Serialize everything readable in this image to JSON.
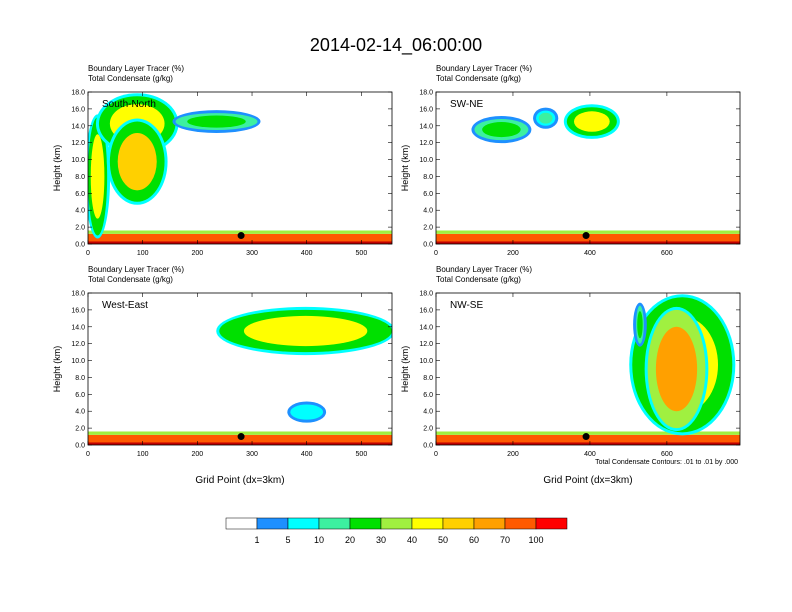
{
  "main_title": "2014-02-14_06:00:00",
  "panel_subtitle_line1": "Boundary Layer Tracer    (%)",
  "panel_subtitle_line2": "Total Condensate   (g/kg)",
  "ylabel": "Height (km)",
  "xlabel": "Grid Point (dx=3km)",
  "contour_info": "Total Condensate Contours: .01 to .01 by .000",
  "colorbar": {
    "colors": [
      "#ffffff",
      "#1e90ff",
      "#00ffff",
      "#3cf0a0",
      "#00e000",
      "#a0f040",
      "#ffff00",
      "#ffd000",
      "#ffa000",
      "#ff5a00",
      "#ff0000"
    ],
    "labels": [
      "1",
      "5",
      "10",
      "20",
      "30",
      "40",
      "50",
      "60",
      "70",
      "100"
    ]
  },
  "chart_data": [
    {
      "type": "heatmap",
      "panel_label": "South-North",
      "xlim": [
        0,
        556
      ],
      "ylim": [
        0,
        18
      ],
      "xticks": [
        0,
        100,
        200,
        300,
        400,
        500
      ],
      "yticks": [
        "0.0",
        "2.0",
        "4.0",
        "6.0",
        "8.0",
        "10.0",
        "12.0",
        "14.0",
        "16.0",
        "18.0"
      ],
      "marker": {
        "x": 280,
        "y": 1.0
      },
      "contour_label": ".01",
      "tracer_regions": [
        {
          "x": [
            0,
            556
          ],
          "y": [
            0.0,
            1.2
          ],
          "value": 80
        },
        {
          "x": [
            0,
            556
          ],
          "y": [
            1.2,
            1.6
          ],
          "value": 30
        },
        {
          "x": [
            0,
            35
          ],
          "y": [
            1.0,
            15.0
          ],
          "value": 40
        },
        {
          "x": [
            20,
            160
          ],
          "y": [
            11.0,
            17.5
          ],
          "value": 40
        },
        {
          "x": [
            40,
            140
          ],
          "y": [
            5.0,
            14.5
          ],
          "value": 55
        },
        {
          "x": [
            160,
            310
          ],
          "y": [
            13.5,
            15.5
          ],
          "value": 25
        }
      ]
    },
    {
      "type": "heatmap",
      "panel_label": "SW-NE",
      "xlim": [
        0,
        790
      ],
      "ylim": [
        0,
        18
      ],
      "xticks": [
        0,
        200,
        400,
        600
      ],
      "yticks": [
        "0.0",
        "2.0",
        "4.0",
        "6.0",
        "8.0",
        "10.0",
        "12.0",
        "14.0",
        "16.0",
        "18.0"
      ],
      "marker": {
        "x": 390,
        "y": 1.0
      },
      "contour_label": ".01",
      "tracer_regions": [
        {
          "x": [
            0,
            790
          ],
          "y": [
            0.0,
            1.2
          ],
          "value": 80
        },
        {
          "x": [
            0,
            790
          ],
          "y": [
            1.2,
            1.6
          ],
          "value": 30
        },
        {
          "x": [
            100,
            240
          ],
          "y": [
            12.3,
            14.8
          ],
          "value": 25
        },
        {
          "x": [
            260,
            310
          ],
          "y": [
            14.0,
            15.8
          ],
          "value": 10
        },
        {
          "x": [
            340,
            470
          ],
          "y": [
            12.8,
            16.2
          ],
          "value": 40
        }
      ]
    },
    {
      "type": "heatmap",
      "panel_label": "West-East",
      "xlim": [
        0,
        556
      ],
      "ylim": [
        0,
        18
      ],
      "xticks": [
        0,
        100,
        200,
        300,
        400,
        500
      ],
      "yticks": [
        "0.0",
        "2.0",
        "4.0",
        "6.0",
        "8.0",
        "10.0",
        "12.0",
        "14.0",
        "16.0",
        "18.0"
      ],
      "marker": {
        "x": 280,
        "y": 1.0
      },
      "contour_label": ".01",
      "tracer_regions": [
        {
          "x": [
            0,
            556
          ],
          "y": [
            0.0,
            1.2
          ],
          "value": 80
        },
        {
          "x": [
            0,
            556
          ],
          "y": [
            1.2,
            1.6
          ],
          "value": 30
        },
        {
          "x": [
            240,
            556
          ],
          "y": [
            11.0,
            16.0
          ],
          "value": 40
        },
        {
          "x": [
            370,
            430
          ],
          "y": [
            3.0,
            4.8
          ],
          "value": 5
        }
      ]
    },
    {
      "type": "heatmap",
      "panel_label": "NW-SE",
      "xlim": [
        0,
        790
      ],
      "ylim": [
        0,
        18
      ],
      "xticks": [
        0,
        200,
        400,
        600
      ],
      "yticks": [
        "0.0",
        "2.0",
        "4.0",
        "6.0",
        "8.0",
        "10.0",
        "12.0",
        "14.0",
        "16.0",
        "18.0"
      ],
      "marker": {
        "x": 390,
        "y": 1.0
      },
      "contour_label": ".01",
      "tracer_regions": [
        {
          "x": [
            0,
            790
          ],
          "y": [
            0.0,
            1.2
          ],
          "value": 80
        },
        {
          "x": [
            0,
            790
          ],
          "y": [
            1.2,
            1.6
          ],
          "value": 30
        },
        {
          "x": [
            510,
            770
          ],
          "y": [
            1.5,
            17.5
          ],
          "value": 40
        },
        {
          "x": [
            550,
            700
          ],
          "y": [
            2.0,
            16.0
          ],
          "value": 60
        },
        {
          "x": [
            520,
            540
          ],
          "y": [
            12.0,
            16.5
          ],
          "value": 20
        }
      ]
    }
  ]
}
